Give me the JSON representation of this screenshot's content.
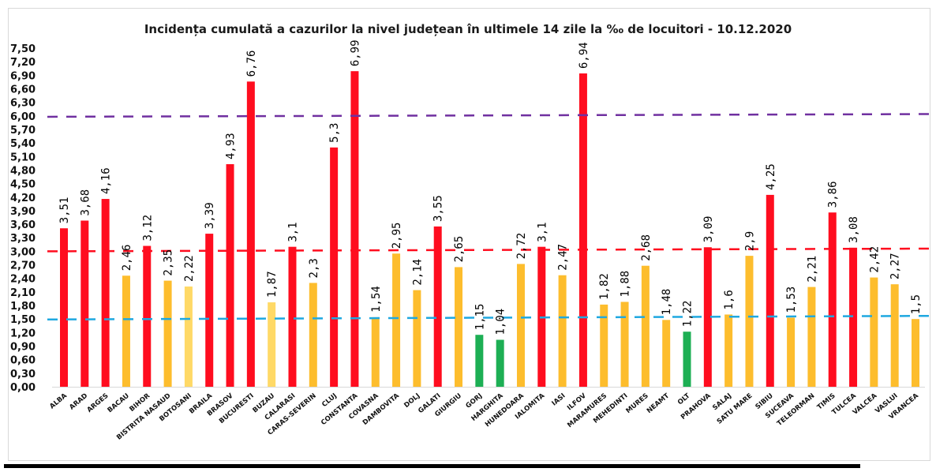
{
  "chart_data": {
    "type": "bar",
    "title": "Incidența cumulată a cazurilor la nivel județean în ultimele 14 zile la ‰ de locuitori - 10.12.2020",
    "xlabel": "",
    "ylabel": "",
    "ylim": [
      0,
      7.5
    ],
    "ytick_step": 0.3,
    "yticks": [
      "0,00",
      "0,30",
      "0,60",
      "0,90",
      "1,20",
      "1,50",
      "1,80",
      "2,10",
      "2,40",
      "2,70",
      "3,00",
      "3,30",
      "3,60",
      "3,90",
      "4,20",
      "4,50",
      "4,80",
      "5,10",
      "5,40",
      "5,70",
      "6,00",
      "6,30",
      "6,60",
      "6,90",
      "7,20",
      "7,50"
    ],
    "grid": false,
    "legend": "none",
    "categories": [
      "ALBA",
      "ARAD",
      "ARGES",
      "BACAU",
      "BIHOR",
      "BISTRITA NASAUD",
      "BOTOSANI",
      "BRAILA",
      "BRASOV",
      "BUCURESTI",
      "BUZAU",
      "CALARASI",
      "CARAS-SEVERIN",
      "CLUJ",
      "CONSTANTA",
      "COVASNA",
      "DAMBOVITA",
      "DOLJ",
      "GALATI",
      "GIURGIU",
      "GORJ",
      "HARGHITA",
      "HUNEDOARA",
      "IALOMITA",
      "IASI",
      "ILFOV",
      "MARAMURES",
      "MEHEDINTI",
      "MURES",
      "NEAMT",
      "OLT",
      "PRAHOVA",
      "SALAJ",
      "SATU MARE",
      "SIBIU",
      "SUCEAVA",
      "TELEORMAN",
      "TIMIS",
      "TULCEA",
      "VALCEA",
      "VASLUI",
      "VRANCEA"
    ],
    "values": [
      3.51,
      3.68,
      4.16,
      2.46,
      3.12,
      2.35,
      2.22,
      3.39,
      4.93,
      6.76,
      1.87,
      3.1,
      2.3,
      5.3,
      6.99,
      1.54,
      2.95,
      2.14,
      3.55,
      2.65,
      1.15,
      1.04,
      2.72,
      3.1,
      2.47,
      6.94,
      1.82,
      1.88,
      2.68,
      1.48,
      1.22,
      3.09,
      1.6,
      2.9,
      4.25,
      1.53,
      2.21,
      3.86,
      3.08,
      2.42,
      2.27,
      1.5
    ],
    "value_labels": [
      "3,51",
      "3,68",
      "4,16",
      "2,46",
      "3,12",
      "2,35",
      "2,22",
      "3,39",
      "4,93",
      "6,76",
      "1,87",
      "3,1",
      "2,3",
      "5,3",
      "6,99",
      "1,54",
      "2,95",
      "2,14",
      "3,55",
      "2,65",
      "1,15",
      "1,04",
      "2,72",
      "3,1",
      "2,47",
      "6,94",
      "1,82",
      "1,88",
      "2,68",
      "1,48",
      "1,22",
      "3,09",
      "1,6",
      "2,9",
      "4,25",
      "1,53",
      "2,21",
      "3,86",
      "3,08",
      "2,42",
      "2,27",
      "1,5"
    ],
    "bar_colors": [
      "red",
      "red",
      "red",
      "orange",
      "red",
      "orange",
      "lightyellow",
      "red",
      "red",
      "red",
      "lightyellow",
      "red",
      "orange",
      "red",
      "red",
      "orange",
      "orange",
      "orange",
      "red",
      "orange",
      "green",
      "green",
      "orange",
      "red",
      "orange",
      "red",
      "orange",
      "orange",
      "orange",
      "orange",
      "green",
      "red",
      "orange",
      "orange",
      "red",
      "orange",
      "orange",
      "red",
      "red",
      "orange",
      "orange",
      "orange"
    ],
    "palette": {
      "red": "#ff0d1f",
      "orange": "#fdbd2d",
      "lightyellow": "#ffd966",
      "green": "#1daf54"
    },
    "reference_lines": [
      {
        "name": "threshold-6",
        "color": "#7030a0",
        "value_start": 5.98,
        "value_end": 6.04,
        "style": "dashed"
      },
      {
        "name": "threshold-3",
        "color": "#ff0d1f",
        "value_start": 3.0,
        "value_end": 3.06,
        "style": "dashed"
      },
      {
        "name": "threshold-1.5",
        "color": "#1fa8e0",
        "value_start": 1.49,
        "value_end": 1.57,
        "style": "dashed"
      }
    ]
  }
}
